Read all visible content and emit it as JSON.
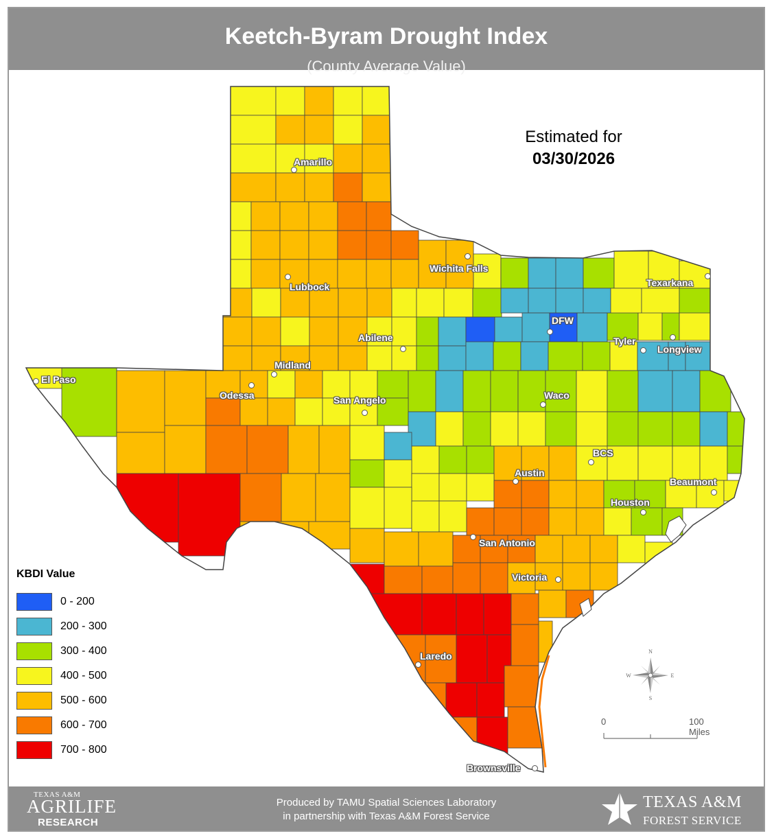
{
  "header": {
    "title": "Keetch-Byram Drought Index",
    "subtitle": "(County Average Value)"
  },
  "estimate": {
    "label": "Estimated for",
    "date": "03/30/2026"
  },
  "legend": {
    "title": "KBDI Value",
    "items": [
      {
        "range": "0 - 200",
        "color": "#1f5ef5"
      },
      {
        "range": "200 - 300",
        "color": "#4bb6d2"
      },
      {
        "range": "300 - 400",
        "color": "#a8e000"
      },
      {
        "range": "400 - 500",
        "color": "#f7f51e"
      },
      {
        "range": "500 - 600",
        "color": "#fdbd00"
      },
      {
        "range": "600 - 700",
        "color": "#f97a00"
      },
      {
        "range": "700 - 800",
        "color": "#ee0000"
      }
    ]
  },
  "cities": [
    {
      "name": "Amarillo"
    },
    {
      "name": "Lubbock"
    },
    {
      "name": "Wichita Falls"
    },
    {
      "name": "Texarkana"
    },
    {
      "name": "Abilene"
    },
    {
      "name": "DFW"
    },
    {
      "name": "Tyler"
    },
    {
      "name": "Longview"
    },
    {
      "name": "Midland"
    },
    {
      "name": "El Paso"
    },
    {
      "name": "Odessa"
    },
    {
      "name": "San Angelo"
    },
    {
      "name": "Waco"
    },
    {
      "name": "BCS"
    },
    {
      "name": "Austin"
    },
    {
      "name": "Beaumont"
    },
    {
      "name": "Houston"
    },
    {
      "name": "San Antonio"
    },
    {
      "name": "Victoria"
    },
    {
      "name": "Laredo"
    },
    {
      "name": "Brownsville"
    }
  ],
  "compass": {
    "n": "N",
    "s": "S",
    "e": "E",
    "w": "W"
  },
  "scale": {
    "start": "0",
    "end": "100 Miles"
  },
  "footer": {
    "credit_line1": "Produced by TAMU Spatial Sciences Laboratory",
    "credit_line2": "in partnership with Texas A&M Forest Service",
    "agrilife_line1": "TEXAS A&M",
    "agrilife_line2": "AGRILIFE",
    "agrilife_line3": "RESEARCH",
    "forest_line1": "TEXAS A&M",
    "forest_line2": "FOREST SERVICE"
  }
}
